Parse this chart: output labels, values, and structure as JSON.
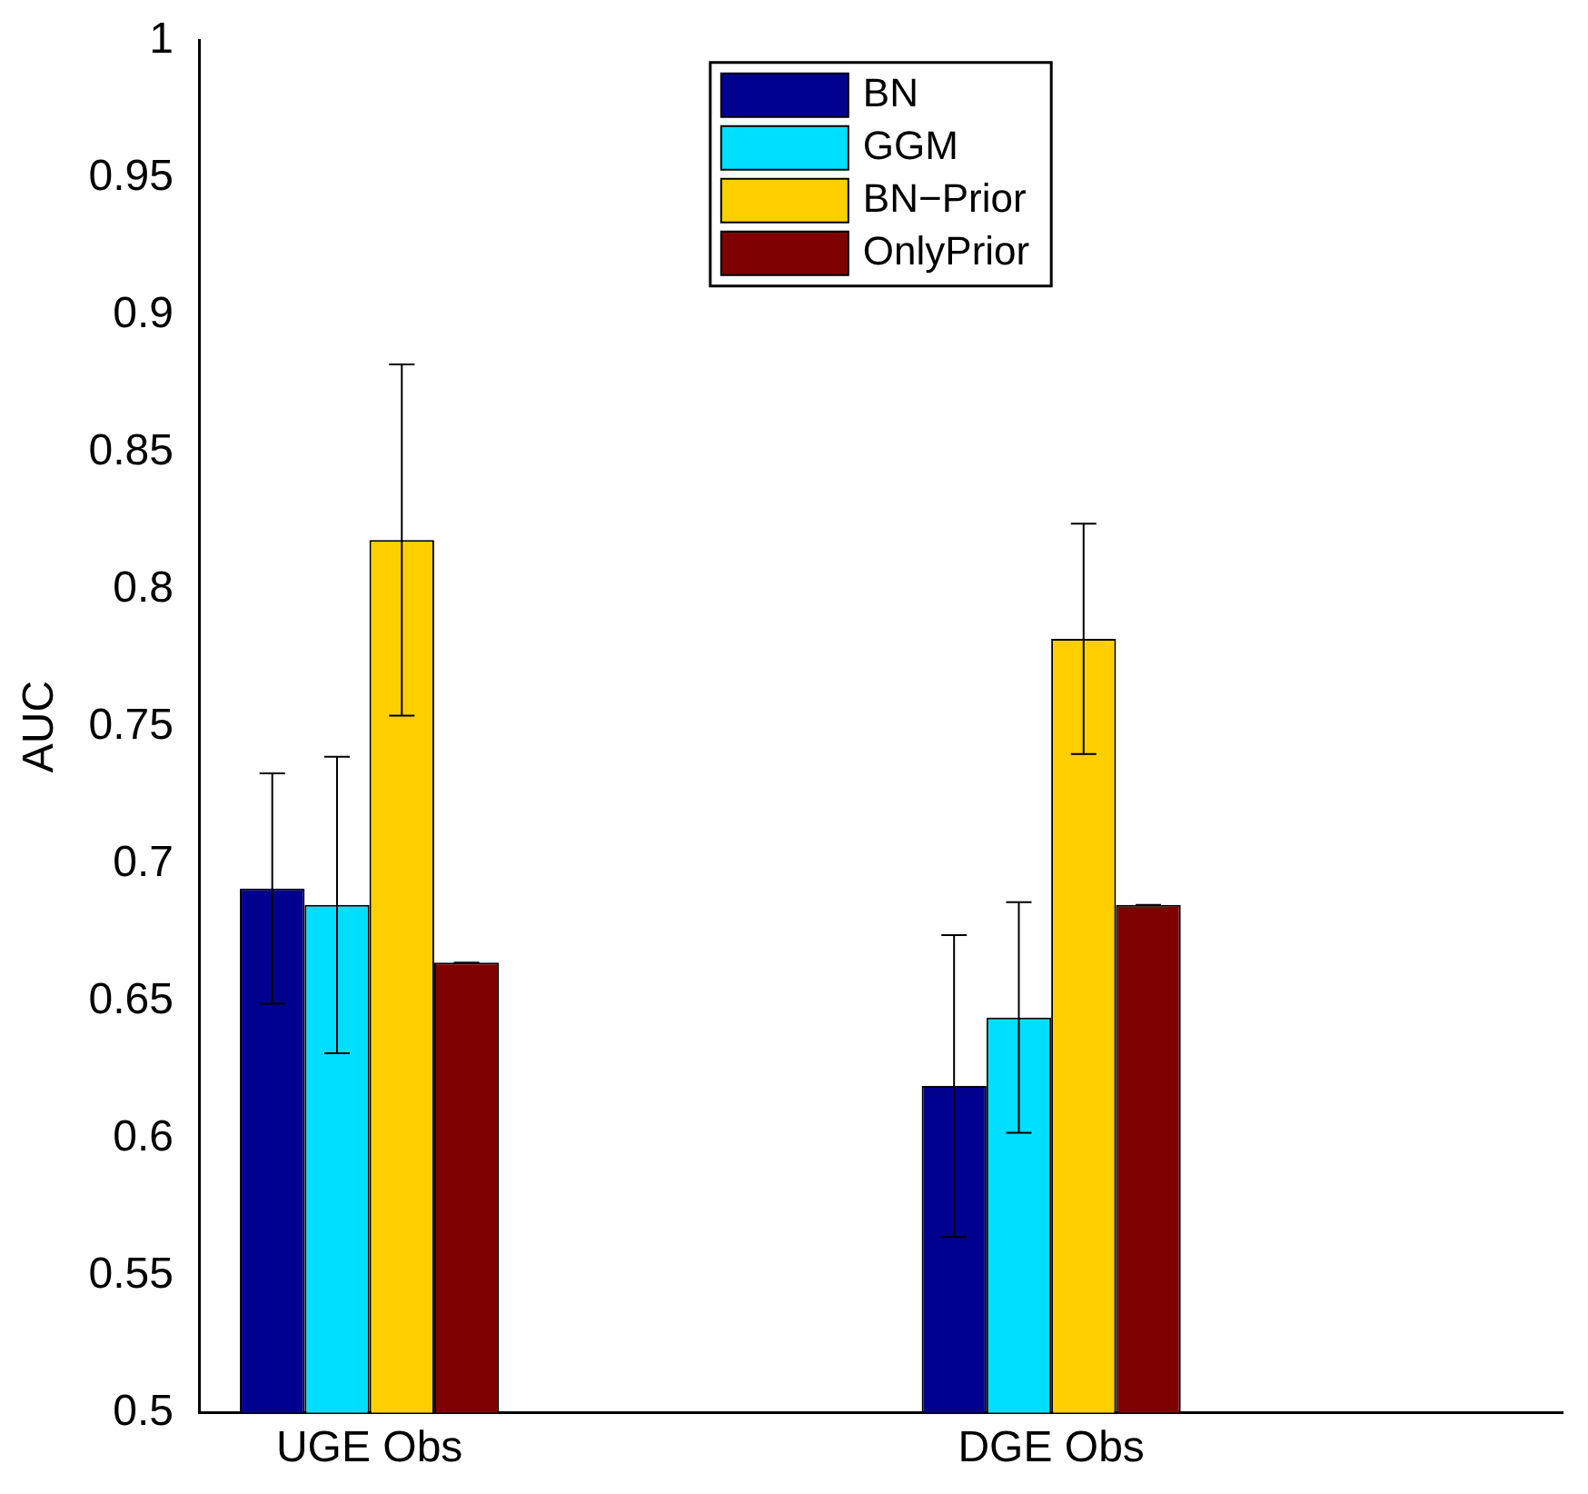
{
  "chart_data": {
    "type": "bar",
    "ylabel": "AUC",
    "categories": [
      "UGE Obs",
      null,
      "DGE Obs",
      null
    ],
    "series": [
      {
        "name": "BN",
        "color": "#00008f",
        "values": [
          0.691,
          null,
          0.619,
          null
        ],
        "errors": [
          0.042,
          null,
          0.055,
          null
        ]
      },
      {
        "name": "GGM",
        "color": "#00dfff",
        "values": [
          0.685,
          null,
          0.644,
          null
        ],
        "errors": [
          0.054,
          null,
          0.042,
          null
        ]
      },
      {
        "name": "BN−Prior",
        "color": "#ffcf00",
        "values": [
          0.818,
          null,
          0.782,
          null
        ],
        "errors": [
          0.064,
          null,
          0.042,
          null
        ]
      },
      {
        "name": "OnlyPrior",
        "color": "#7f0000",
        "values": [
          0.664,
          null,
          0.685,
          null
        ],
        "errors": [
          0,
          null,
          0,
          null
        ]
      }
    ],
    "ylim": [
      0.5,
      1
    ],
    "yticks": [
      0.5,
      0.55,
      0.6,
      0.65,
      0.7,
      0.75,
      0.8,
      0.85,
      0.9,
      0.95,
      1
    ],
    "grid": false,
    "legend": "top"
  }
}
